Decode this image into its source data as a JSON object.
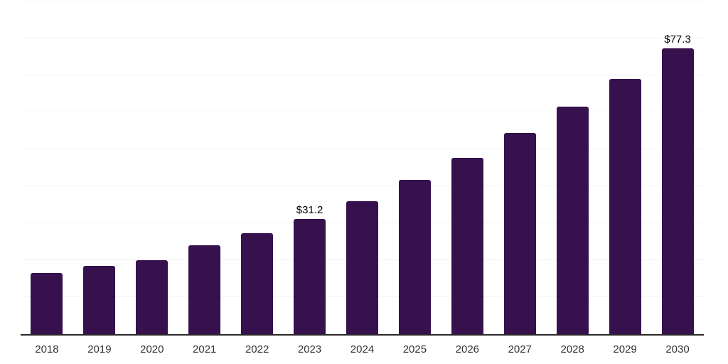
{
  "chart_data": {
    "type": "bar",
    "title": "",
    "xlabel": "",
    "ylabel": "",
    "categories": [
      "2018",
      "2019",
      "2020",
      "2021",
      "2022",
      "2023",
      "2024",
      "2025",
      "2026",
      "2027",
      "2028",
      "2029",
      "2030"
    ],
    "values": [
      16.5,
      18.4,
      20.0,
      24.0,
      27.4,
      31.2,
      36.0,
      41.8,
      47.6,
      54.4,
      61.6,
      69.1,
      77.3
    ],
    "value_labels": [
      "",
      "",
      "",
      "",
      "",
      "$31.2",
      "",
      "",
      "",
      "",
      "",
      "",
      "$77.3"
    ],
    "ylim": [
      0,
      90
    ],
    "grid_interval": 10,
    "grid": true,
    "legend": false,
    "colors": {
      "bar": "#36114D",
      "axis": "#2b2b2b",
      "grid": "#f2f2f2",
      "tick": "#333333",
      "value_label": "#000000",
      "background": "#ffffff"
    }
  }
}
